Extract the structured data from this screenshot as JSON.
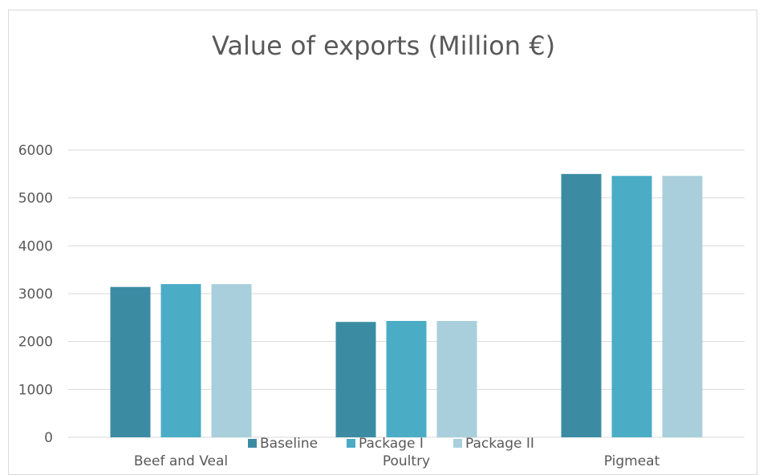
{
  "chart_data": {
    "type": "bar",
    "title": "Value of exports (Million €)",
    "xlabel": "",
    "ylabel": "",
    "categories": [
      "Beef and Veal",
      "Poultry",
      "Pigmeat"
    ],
    "series": [
      {
        "name": "Baseline",
        "values": [
          3140,
          2410,
          5500
        ],
        "color": "#3b8ca3"
      },
      {
        "name": "Package I",
        "values": [
          3200,
          2430,
          5460
        ],
        "color": "#4aacc5"
      },
      {
        "name": "Package II",
        "values": [
          3200,
          2430,
          5460
        ],
        "color": "#a9cfdc"
      }
    ],
    "ylim": [
      0,
      6000
    ],
    "yticks": [
      0,
      1000,
      2000,
      3000,
      4000,
      5000,
      6000
    ],
    "grid": true,
    "legend_position": "bottom"
  }
}
